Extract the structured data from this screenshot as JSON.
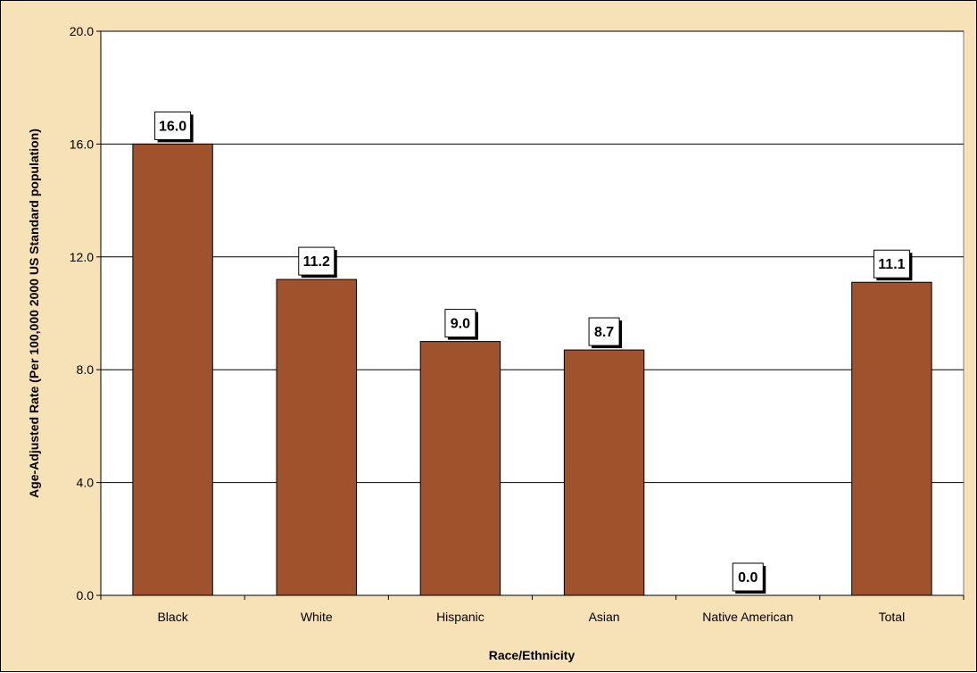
{
  "chart_data": {
    "type": "bar",
    "categories": [
      "Black",
      "White",
      "Hispanic",
      "Asian",
      "Native American",
      "Total"
    ],
    "values": [
      16.0,
      11.2,
      9.0,
      8.7,
      0.0,
      11.1
    ],
    "data_labels": [
      "16.0",
      "11.2",
      "9.0",
      "8.7",
      "0.0",
      "11.1"
    ],
    "xlabel": "Race/Ethnicity",
    "ylabel": "Age-Adjusted Rate (Per 100,000 2000 US Standard population)",
    "ylim": [
      0,
      20
    ],
    "yticks": [
      0,
      4,
      8,
      12,
      16,
      20
    ],
    "ytick_labels": [
      "0.0",
      "4.0",
      "8.0",
      "12.0",
      "16.0",
      "20.0"
    ],
    "grid": true,
    "legend": "none",
    "colors": {
      "bar": "#a0522d",
      "background": "#f7e1b7",
      "plot_area": "#ffffff",
      "gridline": "#000000",
      "label_box": "#ffffff"
    }
  }
}
